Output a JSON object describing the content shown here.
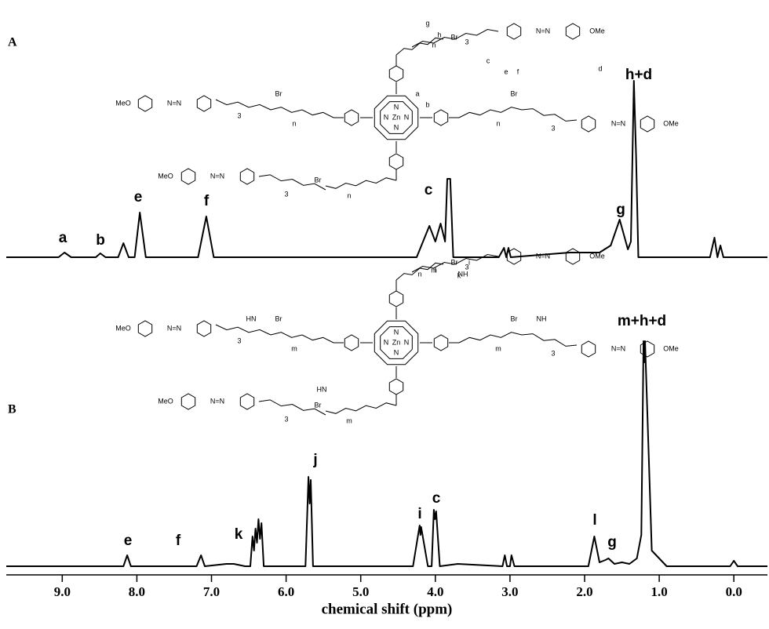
{
  "chart_data": [
    {
      "type": "line",
      "panel_label": "A",
      "color": "#000000",
      "xlim": [
        9.75,
        -0.45
      ],
      "ylim": [
        0,
        240
      ],
      "x": [
        9.75,
        9.05,
        8.97,
        8.88,
        8.55,
        8.49,
        8.42,
        8.25,
        8.18,
        8.11,
        8.03,
        7.96,
        7.88,
        7.18,
        7.07,
        6.97,
        4.25,
        4.08,
        4.0,
        3.93,
        3.87,
        3.84,
        3.8,
        3.76,
        3.15,
        3.08,
        3.05,
        3.02,
        2.99,
        2.6,
        2.2,
        1.8,
        1.65,
        1.53,
        1.42,
        1.38,
        1.34,
        1.31,
        1.28,
        0.32,
        0.26,
        0.22,
        0.18,
        0.14,
        -0.45
      ],
      "values": [
        0,
        0,
        6,
        0,
        0,
        5,
        0,
        0,
        18,
        0,
        0,
        57,
        0,
        0,
        52,
        0,
        0,
        40,
        20,
        43,
        20,
        100,
        100,
        0,
        0,
        12,
        0,
        12,
        0,
        3,
        6,
        6,
        15,
        48,
        10,
        20,
        225,
        130,
        0,
        0,
        25,
        0,
        15,
        0,
        0
      ],
      "peak_labels": [
        "a",
        "b",
        "e",
        "f",
        "c",
        "g",
        "h+d"
      ],
      "structure_labels": [
        "MeO",
        "N=N",
        "OMe",
        "Zn",
        "N",
        "Br",
        "n",
        "3",
        "a",
        "b",
        "c",
        "d",
        "e",
        "f",
        "g",
        "h"
      ]
    },
    {
      "type": "line",
      "panel_label": "B",
      "color": "#000000",
      "xlim": [
        9.75,
        -0.45
      ],
      "ylim": [
        0,
        300
      ],
      "x": [
        9.75,
        8.18,
        8.13,
        8.08,
        7.2,
        7.14,
        7.09,
        6.8,
        6.7,
        6.55,
        6.48,
        6.45,
        6.43,
        6.41,
        6.39,
        6.37,
        6.35,
        6.33,
        6.3,
        5.74,
        5.7,
        5.685,
        5.67,
        5.64,
        4.3,
        4.21,
        4.2,
        4.19,
        4.1,
        4.05,
        4.02,
        4.005,
        3.99,
        3.94,
        3.7,
        3.1,
        3.07,
        3.04,
        3.0,
        2.98,
        2.94,
        2.2,
        1.95,
        1.87,
        1.8,
        1.72,
        1.68,
        1.6,
        1.5,
        1.4,
        1.3,
        1.24,
        1.21,
        1.2,
        1.19,
        1.15,
        1.1,
        0.9,
        0.05,
        0.0,
        -0.05,
        -0.45
      ],
      "values": [
        0,
        0,
        14,
        0,
        0,
        14,
        0,
        3,
        3,
        0,
        0,
        38,
        20,
        48,
        30,
        60,
        35,
        55,
        0,
        0,
        114,
        80,
        110,
        0,
        0,
        52,
        40,
        50,
        0,
        0,
        72,
        60,
        70,
        0,
        3,
        0,
        14,
        0,
        0,
        14,
        0,
        0,
        0,
        38,
        5,
        8,
        10,
        3,
        5,
        3,
        10,
        40,
        287,
        260,
        287,
        170,
        20,
        0,
        0,
        7,
        0,
        0
      ],
      "peak_labels": [
        "e",
        "f",
        "k",
        "j",
        "i",
        "c",
        "l",
        "g",
        "m+h+d"
      ],
      "structure_labels": [
        "MeO",
        "N=N",
        "OMe",
        "Zn",
        "N",
        "Br",
        "n",
        "m",
        "3",
        "HN",
        "NH",
        "i",
        "k",
        "l"
      ],
      "xlabel": "chemical shift (ppm)",
      "xticks": [
        {
          "value": 9,
          "label": "9.0"
        },
        {
          "value": 8,
          "label": "8.0"
        },
        {
          "value": 7,
          "label": "7.0"
        },
        {
          "value": 6,
          "label": "6.0"
        },
        {
          "value": 5,
          "label": "5.0"
        },
        {
          "value": 4,
          "label": "4.0"
        },
        {
          "value": 3,
          "label": "3.0"
        },
        {
          "value": 2,
          "label": "2.0"
        },
        {
          "value": 1,
          "label": "1.0"
        },
        {
          "value": 0,
          "label": "0.0"
        }
      ]
    }
  ]
}
